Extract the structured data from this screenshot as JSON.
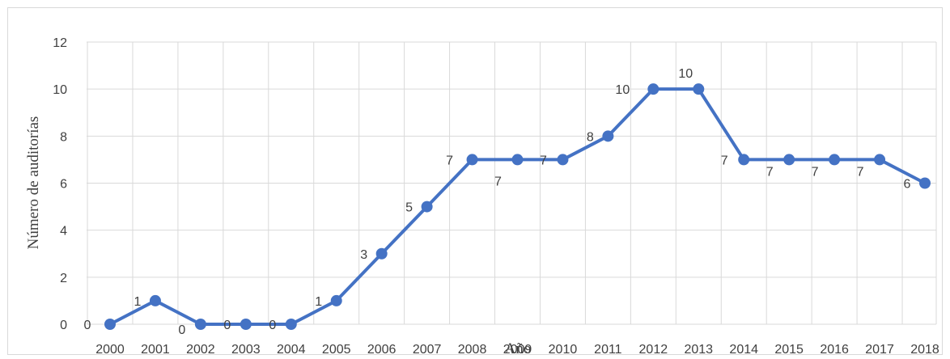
{
  "chart_data": {
    "type": "line",
    "title": "",
    "xlabel": "Año",
    "ylabel": "Número de auditorías",
    "ylim": [
      0,
      12
    ],
    "yticks": [
      "0",
      "2",
      "4",
      "6",
      "8",
      "10",
      "12"
    ],
    "grid": true,
    "legend": "none",
    "categories": [
      "2000",
      "2001",
      "2002",
      "2003",
      "2004",
      "2005",
      "2006",
      "2007",
      "2008",
      "2009",
      "2010",
      "2011",
      "2012",
      "2013",
      "2014",
      "2015",
      "2016",
      "2017",
      "2018"
    ],
    "series": [
      {
        "values": [
          0,
          1,
          0,
          0,
          0,
          1,
          3,
          5,
          7,
          7,
          7,
          8,
          10,
          10,
          7,
          7,
          7,
          7,
          6
        ],
        "color": "#4472c4"
      }
    ],
    "data_labels": [
      "0",
      "1",
      "0",
      "0",
      "0",
      "1",
      "3",
      "5",
      "7",
      "7",
      "7",
      "8",
      "10",
      "10",
      "7",
      "7",
      "7",
      "7",
      "6"
    ]
  }
}
